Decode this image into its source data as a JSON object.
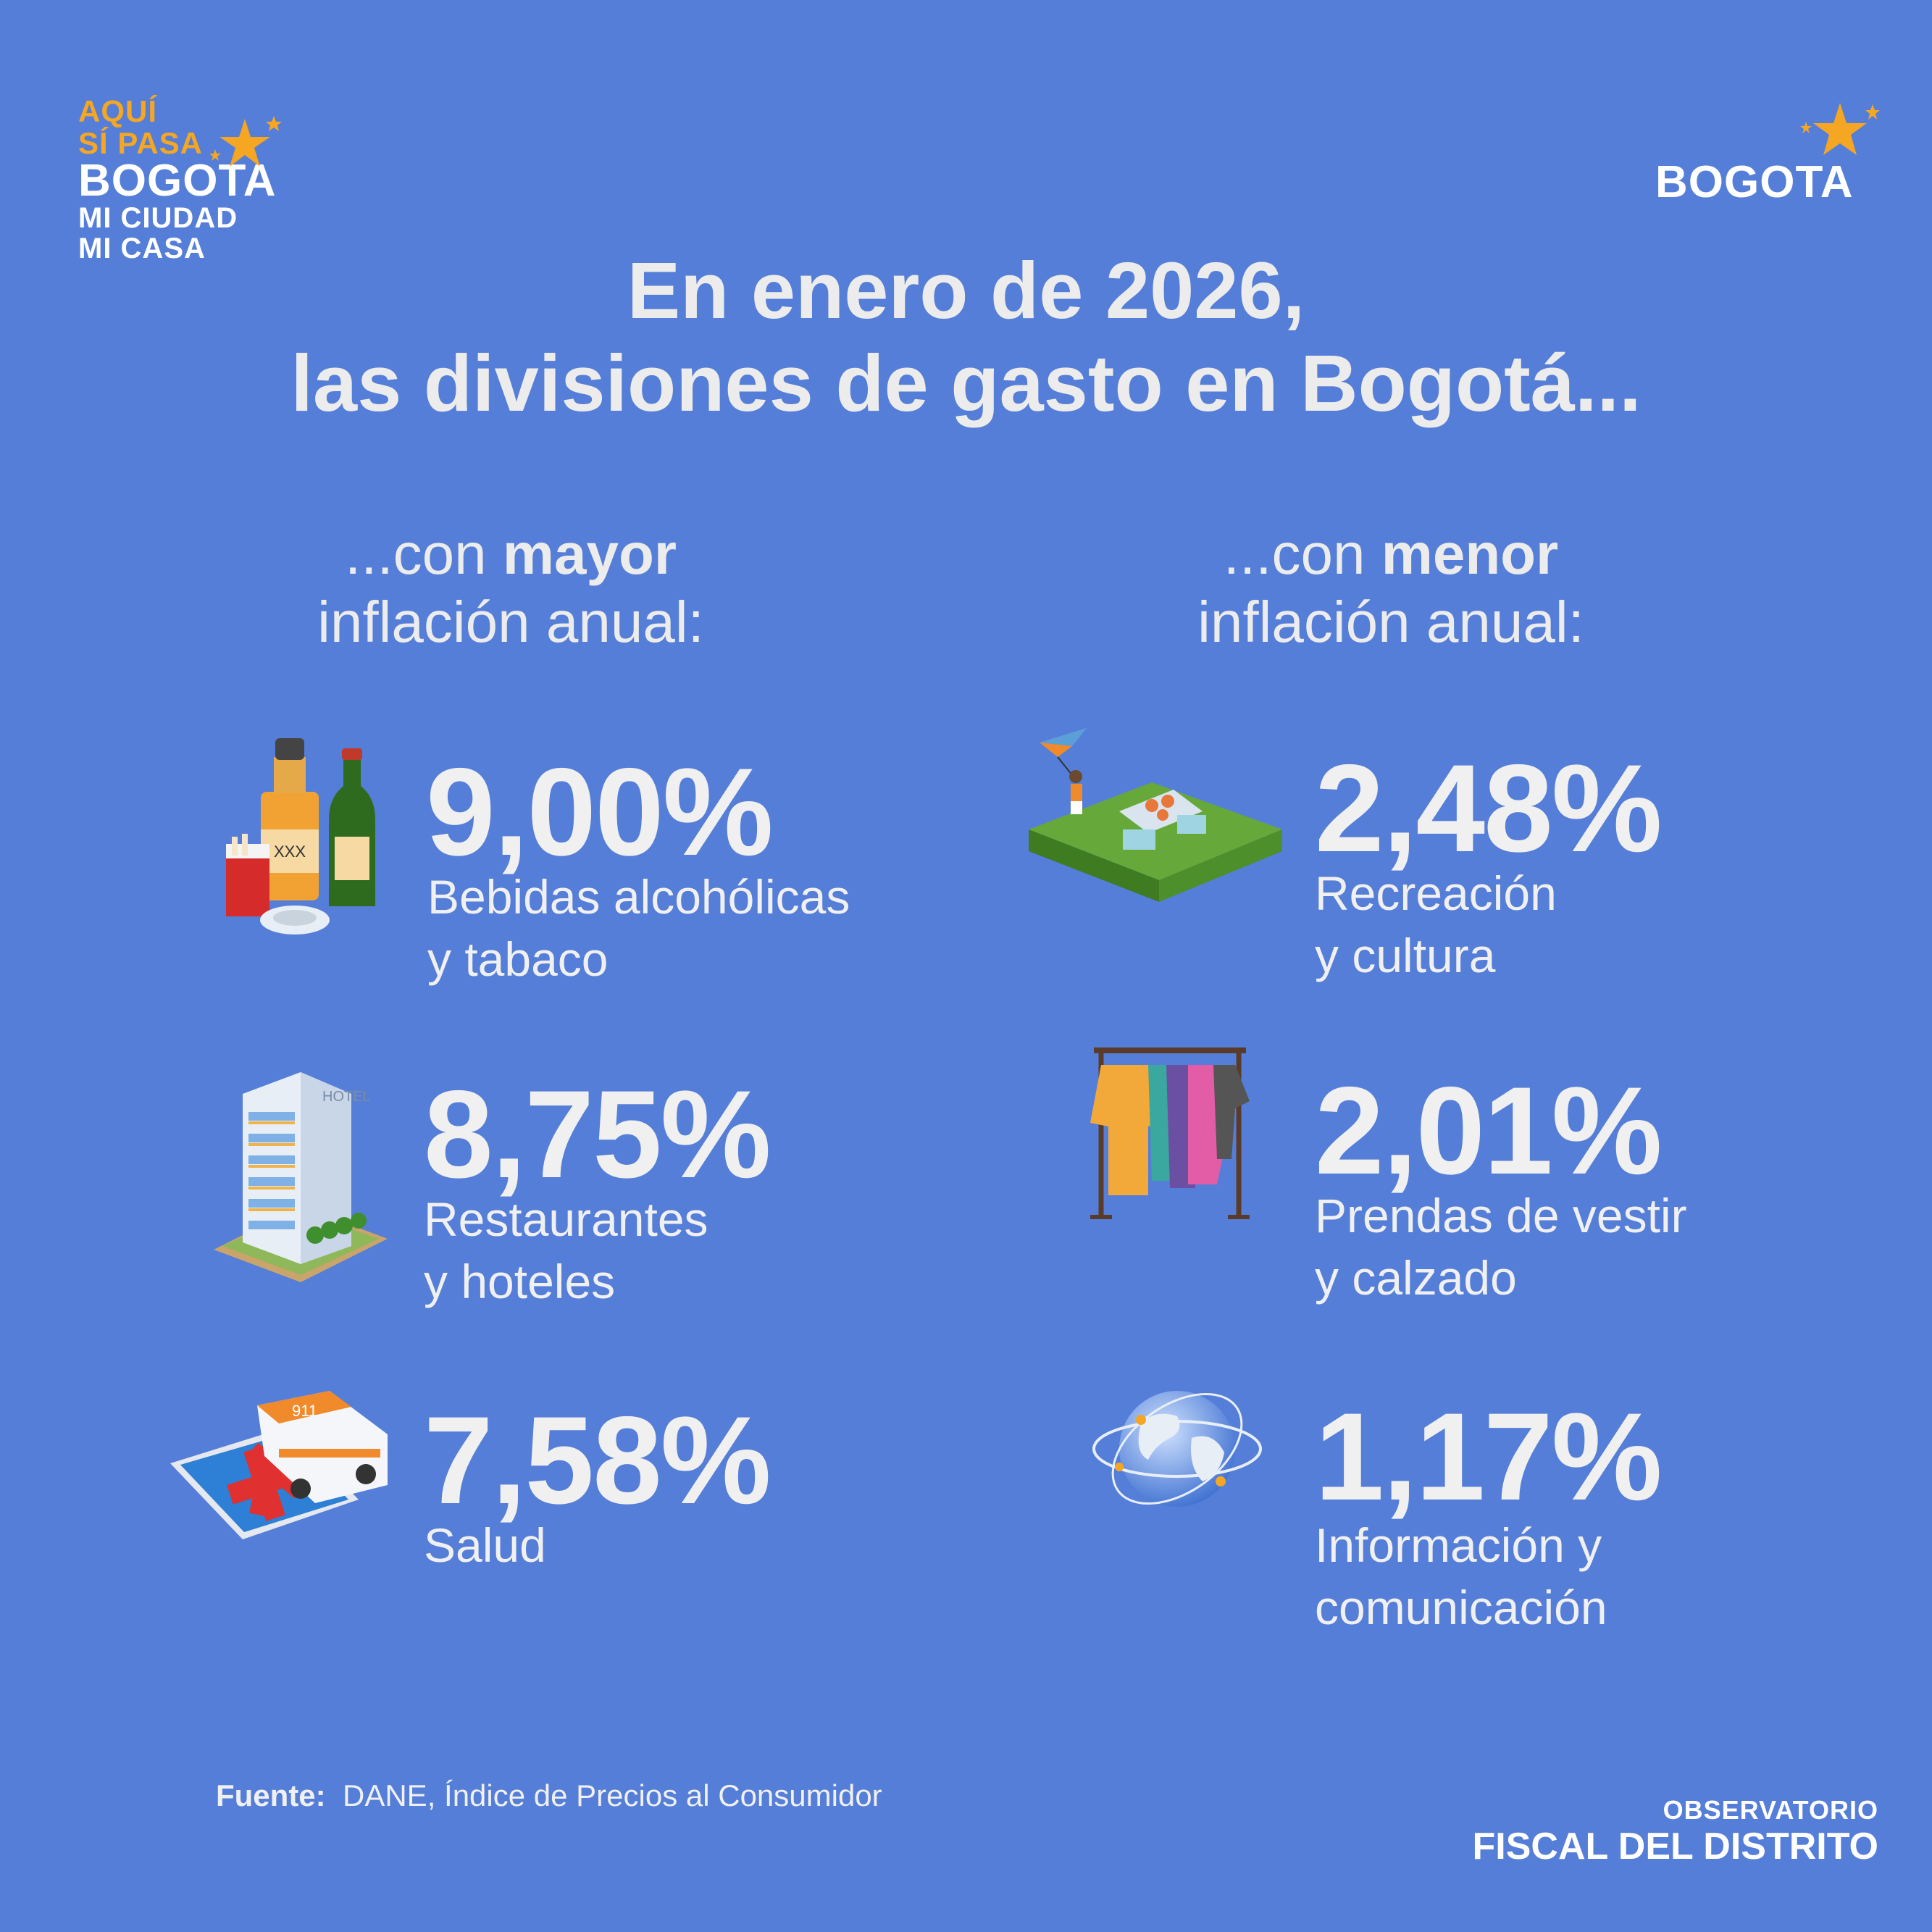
{
  "logo_left": {
    "line1": "AQUÍ",
    "line2": "SÍ PASA",
    "line3": "BOGOTA",
    "line4": "MI CIUDAD",
    "line5": "MI CASA"
  },
  "logo_right": {
    "wordmark": "BOGOTA"
  },
  "title": {
    "line1": "En enero de 2026,",
    "line2": "las divisiones de gasto en Bogotá..."
  },
  "left_heading": {
    "pre": "...con ",
    "bold": "mayor",
    "line2": "inflación anual:"
  },
  "right_heading": {
    "pre": "...con ",
    "bold": "menor",
    "line2": "inflación anual:"
  },
  "higher": [
    {
      "value": "9,00%",
      "label1": "Bebidas alcohólicas",
      "label2": "y tabaco",
      "icon": "alcohol-tobacco-icon"
    },
    {
      "value": "8,75%",
      "label1": "Restaurantes",
      "label2": "y hoteles",
      "icon": "hotel-icon"
    },
    {
      "value": "7,58%",
      "label1": "Salud",
      "label2": "",
      "icon": "ambulance-health-icon"
    }
  ],
  "lower": [
    {
      "value": "2,48%",
      "label1": "Recreación",
      "label2": "y cultura",
      "icon": "park-picnic-icon"
    },
    {
      "value": "2,01%",
      "label1": "Prendas de vestir",
      "label2": "y calzado",
      "icon": "clothes-rack-icon"
    },
    {
      "value": "1,17%",
      "label1": "Información y",
      "label2": "comunicación",
      "icon": "globe-network-icon"
    }
  ],
  "source": {
    "label": "Fuente:",
    "text": "DANE, Índice de Precios al Consumidor"
  },
  "footer_logo": {
    "line1": "OBSERVATORIO",
    "line2": "FISCAL DEL DISTRITO"
  },
  "colors": {
    "background": "#557ed8",
    "accent_yellow": "#f5a623",
    "text": "#f0f0f0"
  }
}
